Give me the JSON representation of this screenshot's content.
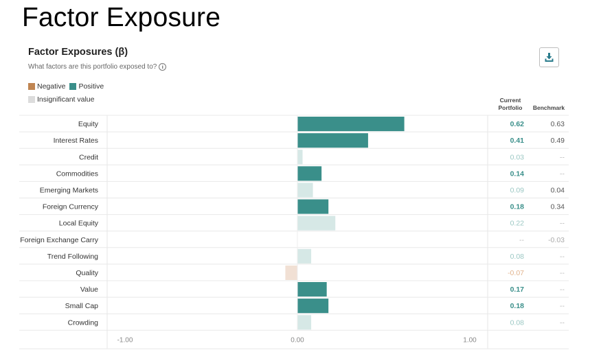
{
  "page_title": "Factor Exposure",
  "card": {
    "title": "Factor Exposures (β)",
    "subtitle": "What factors are this portfolio exposed to?",
    "info_icon": "i"
  },
  "legend": {
    "negative": "Negative",
    "positive": "Positive",
    "insignificant": "Insignificant value"
  },
  "columns": {
    "current_line1": "Current",
    "current_line2": "Portfolio",
    "benchmark": "Benchmark"
  },
  "colors": {
    "positive": "#3a8f8a",
    "negative": "#c08552",
    "insignificant_pos": "#d6e8e6",
    "insignificant_neg": "#f1e0d4",
    "row_border": "#e8e8e8",
    "value_insig": "#9cc8c4",
    "value_insig_neg": "#e2b48e"
  },
  "chart_data": {
    "type": "bar",
    "orientation": "horizontal",
    "xlim": [
      -1.1,
      1.1
    ],
    "xticks": [
      -1.0,
      0.0,
      1.0
    ],
    "xtick_labels": [
      "-1.00",
      "0.00",
      "1.00"
    ],
    "categories": [
      "Equity",
      "Interest Rates",
      "Credit",
      "Commodities",
      "Emerging Markets",
      "Foreign Currency",
      "Local Equity",
      "Foreign Exchange Carry",
      "Trend Following",
      "Quality",
      "Value",
      "Small Cap",
      "Crowding"
    ],
    "values": [
      0.62,
      0.41,
      0.03,
      0.14,
      0.09,
      0.18,
      0.22,
      0.0,
      0.08,
      -0.07,
      0.17,
      0.18,
      0.08
    ],
    "significant": [
      true,
      true,
      false,
      true,
      false,
      true,
      false,
      false,
      false,
      false,
      true,
      true,
      false
    ],
    "current_labels": [
      "0.62",
      "0.41",
      "0.03",
      "0.14",
      "0.09",
      "0.18",
      "0.22",
      "--",
      "0.08",
      "-0.07",
      "0.17",
      "0.18",
      "0.08"
    ],
    "benchmark_labels": [
      "0.63",
      "0.49",
      "--",
      "--",
      "0.04",
      "0.34",
      "--",
      "-0.03",
      "--",
      "--",
      "--",
      "--",
      "--"
    ]
  }
}
